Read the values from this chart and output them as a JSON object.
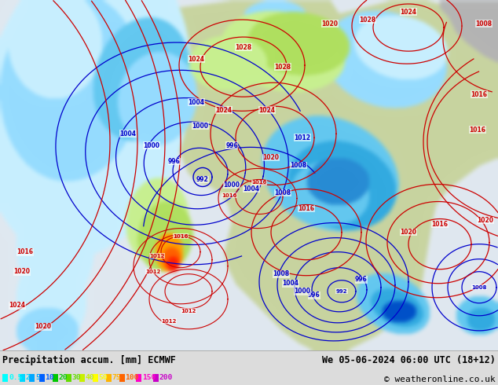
{
  "title_left": "Precipitation accum. [mm] ECMWF",
  "title_right": "We 05-06-2024 06:00 UTC (18+12)",
  "copyright": "© weatheronline.co.uk",
  "legend_values": [
    "0.5",
    "2",
    "5",
    "10",
    "20",
    "30",
    "40",
    "50",
    "75",
    "100",
    "150",
    "200"
  ],
  "legend_colors": [
    "#00ffff",
    "#00d8ff",
    "#00a8ff",
    "#0060ff",
    "#00c800",
    "#64dc00",
    "#c8f000",
    "#ffff00",
    "#ffb400",
    "#ff6400",
    "#ff00c8",
    "#c800c8"
  ],
  "bg_color": "#dcdcdc",
  "bottom_bar_color": "#c8c8c8",
  "ocean_color": "#e0e8f0",
  "land_color": "#c8d4a0",
  "land_gray_color": "#b0b0b0",
  "isobar_blue_color": "#0000cc",
  "isobar_red_color": "#cc0000",
  "precip_cyan1": "#c8efff",
  "precip_cyan2": "#96dcff",
  "precip_cyan3": "#64c8f0",
  "precip_cyan4": "#32b4e6",
  "precip_green1": "#c8f090",
  "precip_green2": "#96e050",
  "precip_yellow": "#f0f000",
  "precip_orange": "#ffa000",
  "precip_red": "#ff3200",
  "precip_magenta": "#ff00c8"
}
